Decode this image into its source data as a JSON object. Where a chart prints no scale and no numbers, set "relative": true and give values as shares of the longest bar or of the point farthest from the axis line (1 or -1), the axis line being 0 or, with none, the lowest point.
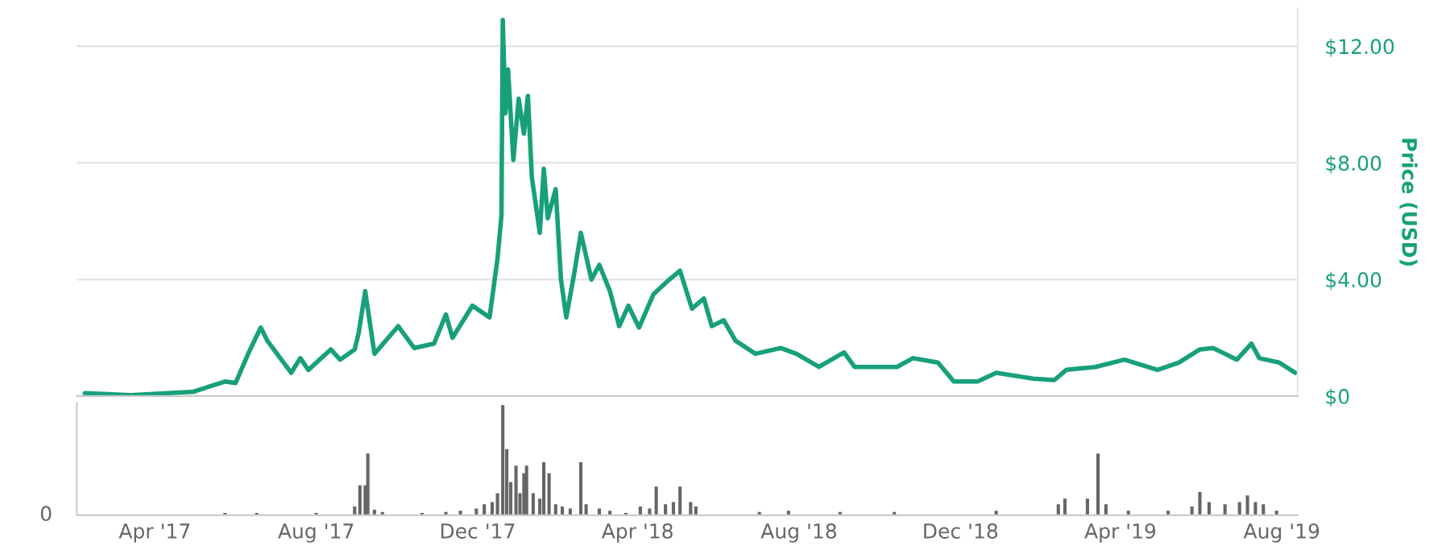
{
  "chart_data": [
    {
      "type": "line",
      "ylabel": "Price (USD)",
      "tick_labels": "y",
      "grid": "y",
      "legend": false,
      "marker": "none",
      "line_style": "solid",
      "xlim": [
        "2017-02-01",
        "2019-08-13"
      ],
      "ylim": [
        0,
        13.3
      ],
      "yticks": [
        {
          "value": 0,
          "label": "$0"
        },
        {
          "value": 4,
          "label": "$4.00"
        },
        {
          "value": 8,
          "label": "$8.00"
        },
        {
          "value": 12,
          "label": "$12.00"
        }
      ],
      "series": [
        {
          "color": "#17a07a",
          "x": [
            "2017-02-07",
            "2017-03-14",
            "2017-04-30",
            "2017-05-24",
            "2017-06-01",
            "2017-06-11",
            "2017-06-20",
            "2017-06-25",
            "2017-07-13",
            "2017-07-20",
            "2017-07-26",
            "2017-08-12",
            "2017-08-19",
            "2017-08-30",
            "2017-09-02",
            "2017-09-07",
            "2017-09-14",
            "2017-10-02",
            "2017-10-14",
            "2017-10-29",
            "2017-11-07",
            "2017-11-12",
            "2017-11-27",
            "2017-12-10",
            "2017-12-16",
            "2017-12-19",
            "2017-12-20",
            "2017-12-22",
            "2017-12-24",
            "2017-12-28",
            "2018-01-01",
            "2018-01-05",
            "2018-01-08",
            "2018-01-11",
            "2018-01-17",
            "2018-01-20",
            "2018-01-23",
            "2018-01-29",
            "2018-02-02",
            "2018-02-06",
            "2018-02-12",
            "2018-02-17",
            "2018-02-25",
            "2018-03-03",
            "2018-03-11",
            "2018-03-18",
            "2018-03-25",
            "2018-04-02",
            "2018-04-13",
            "2018-04-25",
            "2018-05-03",
            "2018-05-12",
            "2018-05-21",
            "2018-05-27",
            "2018-06-05",
            "2018-06-14",
            "2018-06-29",
            "2018-07-18",
            "2018-07-30",
            "2018-08-16",
            "2018-09-04",
            "2018-09-12",
            "2018-10-14",
            "2018-10-26",
            "2018-11-14",
            "2018-11-26",
            "2018-12-14",
            "2018-12-28",
            "2019-01-25",
            "2019-02-10",
            "2019-02-19",
            "2019-03-13",
            "2019-04-04",
            "2019-04-29",
            "2019-05-15",
            "2019-05-31",
            "2019-06-10",
            "2019-06-28",
            "2019-07-09",
            "2019-07-15",
            "2019-07-30",
            "2019-08-11"
          ],
          "values": [
            0.1,
            0.03,
            0.15,
            0.5,
            0.45,
            1.5,
            2.35,
            1.9,
            0.8,
            1.3,
            0.9,
            1.6,
            1.25,
            1.6,
            2.15,
            3.6,
            1.45,
            2.4,
            1.65,
            1.8,
            2.8,
            2.0,
            3.1,
            2.7,
            4.7,
            6.2,
            12.9,
            9.7,
            11.2,
            8.1,
            10.2,
            9.0,
            10.3,
            7.5,
            5.6,
            7.8,
            6.1,
            7.1,
            4.0,
            2.7,
            4.2,
            5.6,
            4.0,
            4.5,
            3.6,
            2.4,
            3.1,
            2.35,
            3.5,
            4.0,
            4.3,
            3.0,
            3.35,
            2.4,
            2.6,
            1.9,
            1.45,
            1.65,
            1.45,
            1.0,
            1.5,
            1.0,
            1.0,
            1.3,
            1.15,
            0.5,
            0.5,
            0.8,
            0.6,
            0.55,
            0.9,
            1.0,
            1.25,
            0.9,
            1.15,
            1.6,
            1.65,
            1.25,
            1.8,
            1.3,
            1.15,
            0.8
          ]
        }
      ]
    },
    {
      "type": "bar",
      "relative": true,
      "tick_labels": "x",
      "grid": false,
      "xlim": [
        "2017-02-01",
        "2019-08-13"
      ],
      "xticks": [
        {
          "value": "2017-04-01",
          "label": "Apr '17"
        },
        {
          "value": "2017-08-01",
          "label": "Aug '17"
        },
        {
          "value": "2017-12-01",
          "label": "Dec '17"
        },
        {
          "value": "2018-04-01",
          "label": "Apr '18"
        },
        {
          "value": "2018-08-01",
          "label": "Aug '18"
        },
        {
          "value": "2018-12-01",
          "label": "Dec '18"
        },
        {
          "value": "2019-04-01",
          "label": "Apr '19"
        },
        {
          "value": "2019-08-01",
          "label": "Aug '19"
        }
      ],
      "annotations": [
        "0"
      ],
      "series": [
        {
          "color": "#666666",
          "x": [
            "2017-05-24",
            "2017-06-17",
            "2017-08-01",
            "2017-08-30",
            "2017-09-03",
            "2017-09-07",
            "2017-09-09",
            "2017-09-14",
            "2017-09-20",
            "2017-10-20",
            "2017-11-07",
            "2017-11-18",
            "2017-11-30",
            "2017-12-06",
            "2017-12-12",
            "2017-12-16",
            "2017-12-20",
            "2017-12-23",
            "2017-12-26",
            "2017-12-30",
            "2018-01-02",
            "2018-01-05",
            "2018-01-07",
            "2018-01-12",
            "2018-01-17",
            "2018-01-20",
            "2018-01-24",
            "2018-01-29",
            "2018-02-03",
            "2018-02-09",
            "2018-02-17",
            "2018-02-21",
            "2018-03-03",
            "2018-03-11",
            "2018-03-23",
            "2018-04-03",
            "2018-04-10",
            "2018-04-15",
            "2018-04-22",
            "2018-04-28",
            "2018-05-03",
            "2018-05-11",
            "2018-05-15",
            "2018-07-02",
            "2018-07-24",
            "2018-09-01",
            "2018-10-12",
            "2018-12-28",
            "2019-02-13",
            "2019-02-18",
            "2019-03-07",
            "2019-03-15",
            "2019-03-21",
            "2019-04-07",
            "2019-05-07",
            "2019-05-25",
            "2019-05-31",
            "2019-06-07",
            "2019-06-19",
            "2019-06-30",
            "2019-07-06",
            "2019-07-12",
            "2019-07-18",
            "2019-07-28"
          ],
          "values": [
            0.02,
            0.02,
            0.02,
            0.08,
            0.27,
            0.27,
            0.56,
            0.05,
            0.03,
            0.02,
            0.03,
            0.04,
            0.06,
            0.1,
            0.12,
            0.2,
            1.0,
            0.6,
            0.3,
            0.45,
            0.2,
            0.38,
            0.45,
            0.2,
            0.15,
            0.48,
            0.38,
            0.1,
            0.08,
            0.06,
            0.48,
            0.1,
            0.06,
            0.04,
            0.02,
            0.08,
            0.06,
            0.26,
            0.1,
            0.12,
            0.26,
            0.12,
            0.08,
            0.03,
            0.04,
            0.03,
            0.03,
            0.04,
            0.1,
            0.15,
            0.15,
            0.56,
            0.1,
            0.04,
            0.04,
            0.08,
            0.21,
            0.12,
            0.1,
            0.12,
            0.18,
            0.12,
            0.1,
            0.04
          ]
        }
      ]
    }
  ]
}
